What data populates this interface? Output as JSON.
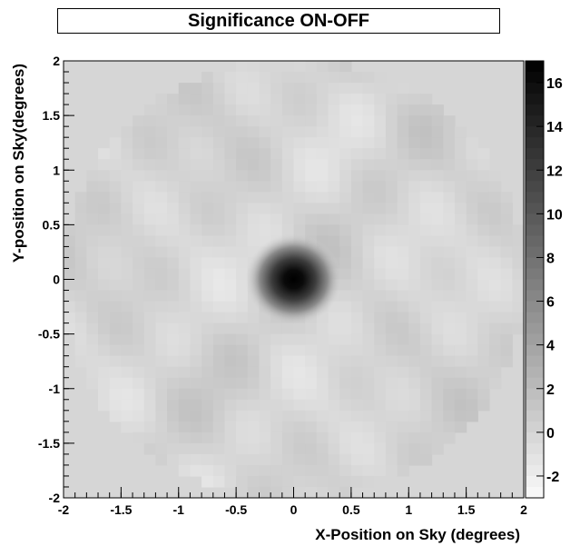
{
  "chart_data": {
    "type": "heatmap",
    "title": "Significance ON-OFF",
    "xlabel": "X-Position on Sky (degrees)",
    "ylabel": "Y-position on Sky(degrees)",
    "xlim": [
      -2,
      2
    ],
    "ylim": [
      -2,
      2
    ],
    "x_ticks": [
      -2,
      -1.5,
      -1,
      -0.5,
      0,
      0.5,
      1,
      1.5,
      2
    ],
    "x_tick_labels": [
      "-2",
      "-1.5",
      "-1",
      "-0.5",
      "0",
      "0.5",
      "1",
      "1.5",
      "2"
    ],
    "y_ticks": [
      2,
      1.5,
      1,
      0.5,
      0,
      -0.5,
      -1,
      -1.5,
      -2
    ],
    "y_tick_labels": [
      "2",
      "1.5",
      "1",
      "0.5",
      "0",
      "-0.5",
      "-1",
      "-1.5",
      "-2"
    ],
    "colorbar": {
      "range": [
        -3,
        17
      ],
      "ticks": [
        16,
        14,
        12,
        10,
        8,
        6,
        4,
        2,
        0,
        -2
      ],
      "tick_labels": [
        "16",
        "14",
        "12",
        "10",
        "8",
        "6",
        "4",
        "2",
        "0",
        "-2"
      ],
      "colormap": "grayscale, white (low) to black (high)"
    },
    "field_of_view_radius_deg": 2,
    "background_level": 0,
    "peak": {
      "x": 0,
      "y": 0,
      "value": 16.5
    },
    "grid": false
  }
}
